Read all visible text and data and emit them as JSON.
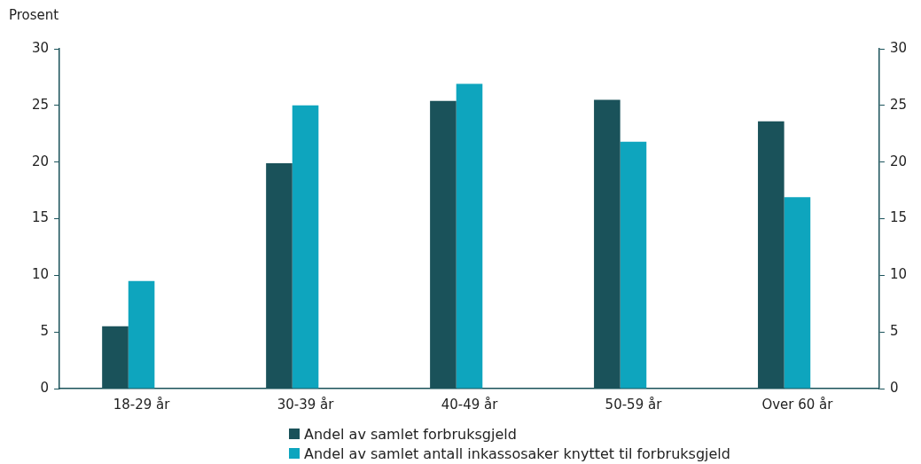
{
  "chart_data": {
    "type": "bar",
    "ylabel": "Prosent",
    "categories": [
      "18-29 år",
      "30-39 år",
      "40-49 år",
      "50-59 år",
      "Over 60 år"
    ],
    "series": [
      {
        "name": "Andel av samlet forbruksgjeld",
        "color": "#1a525a",
        "values": [
          5.5,
          19.9,
          25.4,
          25.5,
          23.6
        ]
      },
      {
        "name": "Andel av samlet antall inkassosaker knyttet til forbruksgjeld",
        "color": "#0ea5be",
        "values": [
          9.5,
          25,
          26.9,
          21.8,
          16.9
        ]
      }
    ],
    "ylim": [
      0,
      30
    ],
    "yticks": [
      0,
      5,
      10,
      15,
      20,
      25,
      30
    ],
    "y2lim": [
      0,
      30
    ],
    "y2ticks": [
      0,
      5,
      10,
      15,
      20,
      25,
      30
    ],
    "grid": false,
    "legend": "bottom"
  }
}
